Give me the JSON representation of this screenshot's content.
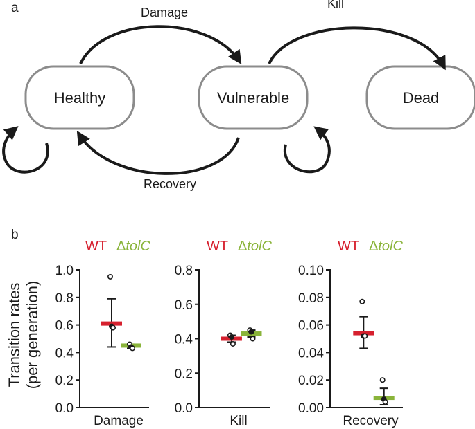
{
  "panel_a": {
    "label": "a",
    "states": {
      "healthy": "Healthy",
      "vulnerable": "Vulnerable",
      "dead": "Dead"
    },
    "transitions": {
      "damage": "Damage",
      "kill": "Kill",
      "recovery": "Recovery"
    }
  },
  "panel_b": {
    "label": "b",
    "ylabel_line1": "Transition rates",
    "ylabel_line2": "(per generation)",
    "legend": {
      "wt": "WT",
      "mutant_prefix": "Δ",
      "mutant": "tolC"
    }
  },
  "colors": {
    "wt": "#d6202e",
    "tolc": "#8ab43a",
    "node_border": "#8c8c8c",
    "ink": "#1a1a1a"
  },
  "chart_data": [
    {
      "type": "scatter",
      "title": "",
      "xlabel": "Damage",
      "ylabel": "Transition rates (per generation)",
      "ylim": [
        0,
        1.0
      ],
      "yticks": [
        "0.0",
        "0.2",
        "0.4",
        "0.6",
        "0.8",
        "1.0"
      ],
      "yticks_values": [
        0,
        0.2,
        0.4,
        0.6,
        0.8,
        1.0
      ],
      "series": [
        {
          "name": "WT",
          "mean": 0.61,
          "err_low": 0.44,
          "err_high": 0.79,
          "points": [
            0.95,
            0.59,
            0.58
          ]
        },
        {
          "name": "ΔtolC",
          "mean": 0.45,
          "err_low": 0.43,
          "err_high": 0.46,
          "points": [
            0.46,
            0.44,
            0.43
          ]
        }
      ]
    },
    {
      "type": "scatter",
      "title": "",
      "xlabel": "Kill",
      "ylabel": "",
      "ylim": [
        0,
        0.8
      ],
      "yticks": [
        "0.0",
        "0.2",
        "0.4",
        "0.6",
        "0.8"
      ],
      "yticks_values": [
        0,
        0.2,
        0.4,
        0.6,
        0.8
      ],
      "series": [
        {
          "name": "WT",
          "mean": 0.4,
          "err_low": 0.38,
          "err_high": 0.42,
          "points": [
            0.42,
            0.41,
            0.37
          ]
        },
        {
          "name": "ΔtolC",
          "mean": 0.43,
          "err_low": 0.41,
          "err_high": 0.45,
          "points": [
            0.45,
            0.44,
            0.4
          ]
        }
      ]
    },
    {
      "type": "scatter",
      "title": "",
      "xlabel": "Recovery",
      "ylabel": "",
      "ylim": [
        0,
        0.1
      ],
      "yticks": [
        "0.00",
        "0.02",
        "0.04",
        "0.06",
        "0.08",
        "0.10"
      ],
      "yticks_values": [
        0,
        0.02,
        0.04,
        0.06,
        0.08,
        0.1
      ],
      "series": [
        {
          "name": "WT",
          "mean": 0.054,
          "err_low": 0.043,
          "err_high": 0.066,
          "points": [
            0.077,
            0.052,
            0.052
          ]
        },
        {
          "name": "ΔtolC",
          "mean": 0.007,
          "err_low": 0.002,
          "err_high": 0.014,
          "points": [
            0.02,
            0.006,
            0.004
          ]
        }
      ]
    }
  ]
}
